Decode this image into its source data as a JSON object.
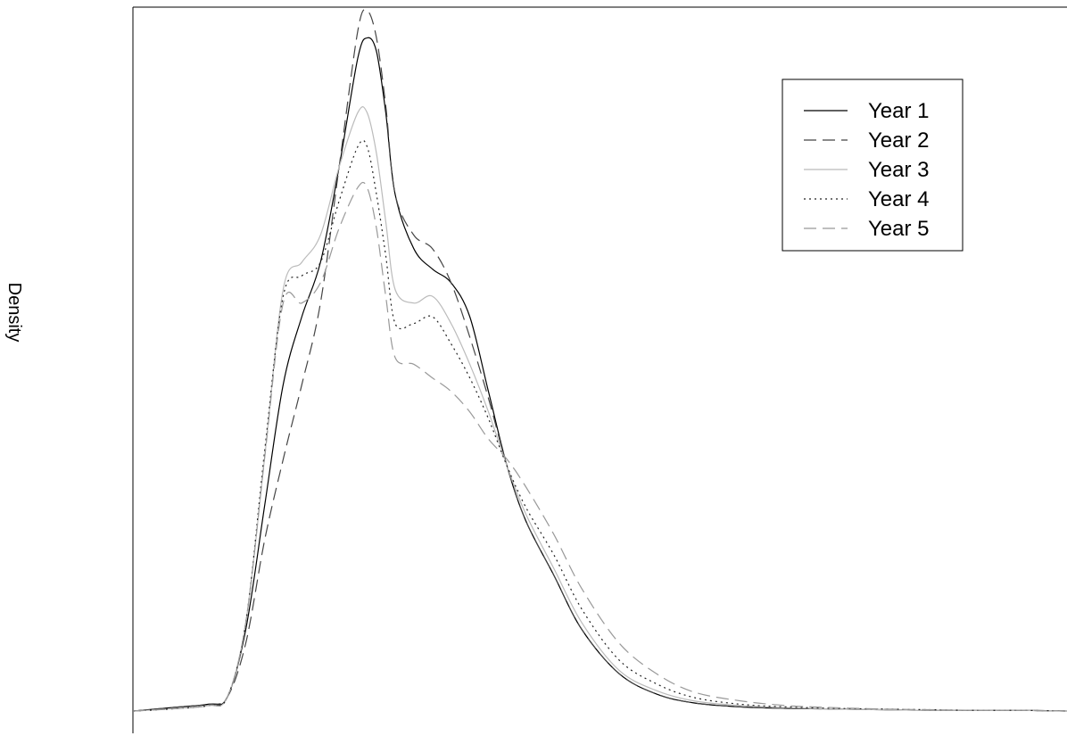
{
  "chart_data": {
    "type": "line",
    "title": "",
    "xlabel": "",
    "ylabel": "Density",
    "xlim": [
      0,
      100
    ],
    "ylim": [
      0,
      100
    ],
    "grid": false,
    "legend": {
      "position": "top-right",
      "entries": [
        "Year 1",
        "Year 2",
        "Year 3",
        "Year 4",
        "Year 5"
      ]
    },
    "series": [
      {
        "name": "Year 1",
        "color": "#000000",
        "style": "solid",
        "x": [
          0,
          4,
          8,
          10,
          12,
          14,
          16,
          18,
          20,
          22,
          24,
          25,
          26,
          27,
          28,
          30,
          32,
          34,
          36,
          38,
          40,
          42,
          45,
          48,
          52,
          56,
          60,
          65,
          70,
          75,
          80,
          85,
          90,
          95,
          100
        ],
        "y": [
          0,
          0.5,
          1,
          2,
          12,
          30,
          48,
          58,
          66,
          80,
          96,
          99,
          97,
          88,
          76,
          68,
          65,
          63,
          58,
          47,
          36,
          28,
          20,
          12,
          5.5,
          2.5,
          1.2,
          0.6,
          0.4,
          0.3,
          0.2,
          0.1,
          0.1,
          0.1,
          0
        ]
      },
      {
        "name": "Year 2",
        "color": "#444444",
        "style": "dashed",
        "x": [
          0,
          4,
          8,
          10,
          12,
          14,
          16,
          18,
          20,
          22,
          24,
          25,
          26,
          27,
          28,
          30,
          32,
          34,
          36,
          38,
          40,
          42,
          45,
          48,
          52,
          56,
          60,
          65,
          70,
          75,
          80,
          85,
          90,
          95,
          100
        ],
        "y": [
          0,
          0.5,
          1,
          2,
          10,
          25,
          37,
          48,
          60,
          80,
          100,
          103,
          99,
          89,
          76,
          70,
          68,
          63,
          55,
          46,
          36,
          28,
          20,
          12,
          5.5,
          2.5,
          1.2,
          0.6,
          0.4,
          0.3,
          0.2,
          0.1,
          0.1,
          0.1,
          0
        ]
      },
      {
        "name": "Year 3",
        "color": "#bbbbbb",
        "style": "solid",
        "x": [
          0,
          4,
          8,
          10,
          12,
          14,
          16,
          18,
          20,
          22,
          24,
          25,
          26,
          27,
          28,
          30,
          32,
          34,
          36,
          38,
          40,
          42,
          45,
          48,
          52,
          56,
          60,
          65,
          70,
          75,
          80,
          85,
          90,
          95,
          100
        ],
        "y": [
          0,
          0.3,
          0.8,
          2,
          13,
          37,
          62,
          66,
          70,
          80,
          88,
          88,
          82,
          72,
          62,
          60,
          61,
          57,
          51,
          44,
          36,
          29,
          21,
          13,
          6,
          3,
          1.5,
          0.8,
          0.5,
          0.3,
          0.2,
          0.1,
          0.1,
          0.1,
          0
        ]
      },
      {
        "name": "Year 4",
        "color": "#222222",
        "style": "dotted",
        "x": [
          0,
          4,
          8,
          10,
          12,
          14,
          16,
          18,
          20,
          22,
          24,
          25,
          26,
          27,
          28,
          30,
          32,
          34,
          36,
          38,
          40,
          42,
          45,
          48,
          52,
          56,
          60,
          65,
          70,
          75,
          80,
          85,
          90,
          95,
          100
        ],
        "y": [
          0,
          0.3,
          0.8,
          2,
          13,
          38,
          61,
          64,
          66,
          75,
          83,
          83,
          76,
          67,
          57,
          57,
          58,
          54,
          49,
          43,
          36,
          30,
          23,
          15,
          7.5,
          4,
          2,
          1,
          0.6,
          0.4,
          0.3,
          0.2,
          0.1,
          0.1,
          0
        ]
      },
      {
        "name": "Year 5",
        "color": "#999999",
        "style": "dashed",
        "x": [
          0,
          4,
          8,
          10,
          12,
          14,
          16,
          18,
          20,
          22,
          24,
          25,
          26,
          27,
          28,
          30,
          32,
          34,
          36,
          38,
          40,
          42,
          45,
          48,
          52,
          56,
          60,
          65,
          70,
          75,
          80,
          85,
          90,
          95,
          100
        ],
        "y": [
          0,
          0.3,
          0.8,
          2,
          13,
          37,
          60,
          60,
          63,
          71,
          77,
          77,
          71,
          61,
          52,
          51,
          49,
          47,
          44,
          40,
          37,
          33,
          26,
          18,
          10,
          5.5,
          2.8,
          1.5,
          0.8,
          0.5,
          0.3,
          0.2,
          0.1,
          0.1,
          0
        ]
      }
    ]
  }
}
